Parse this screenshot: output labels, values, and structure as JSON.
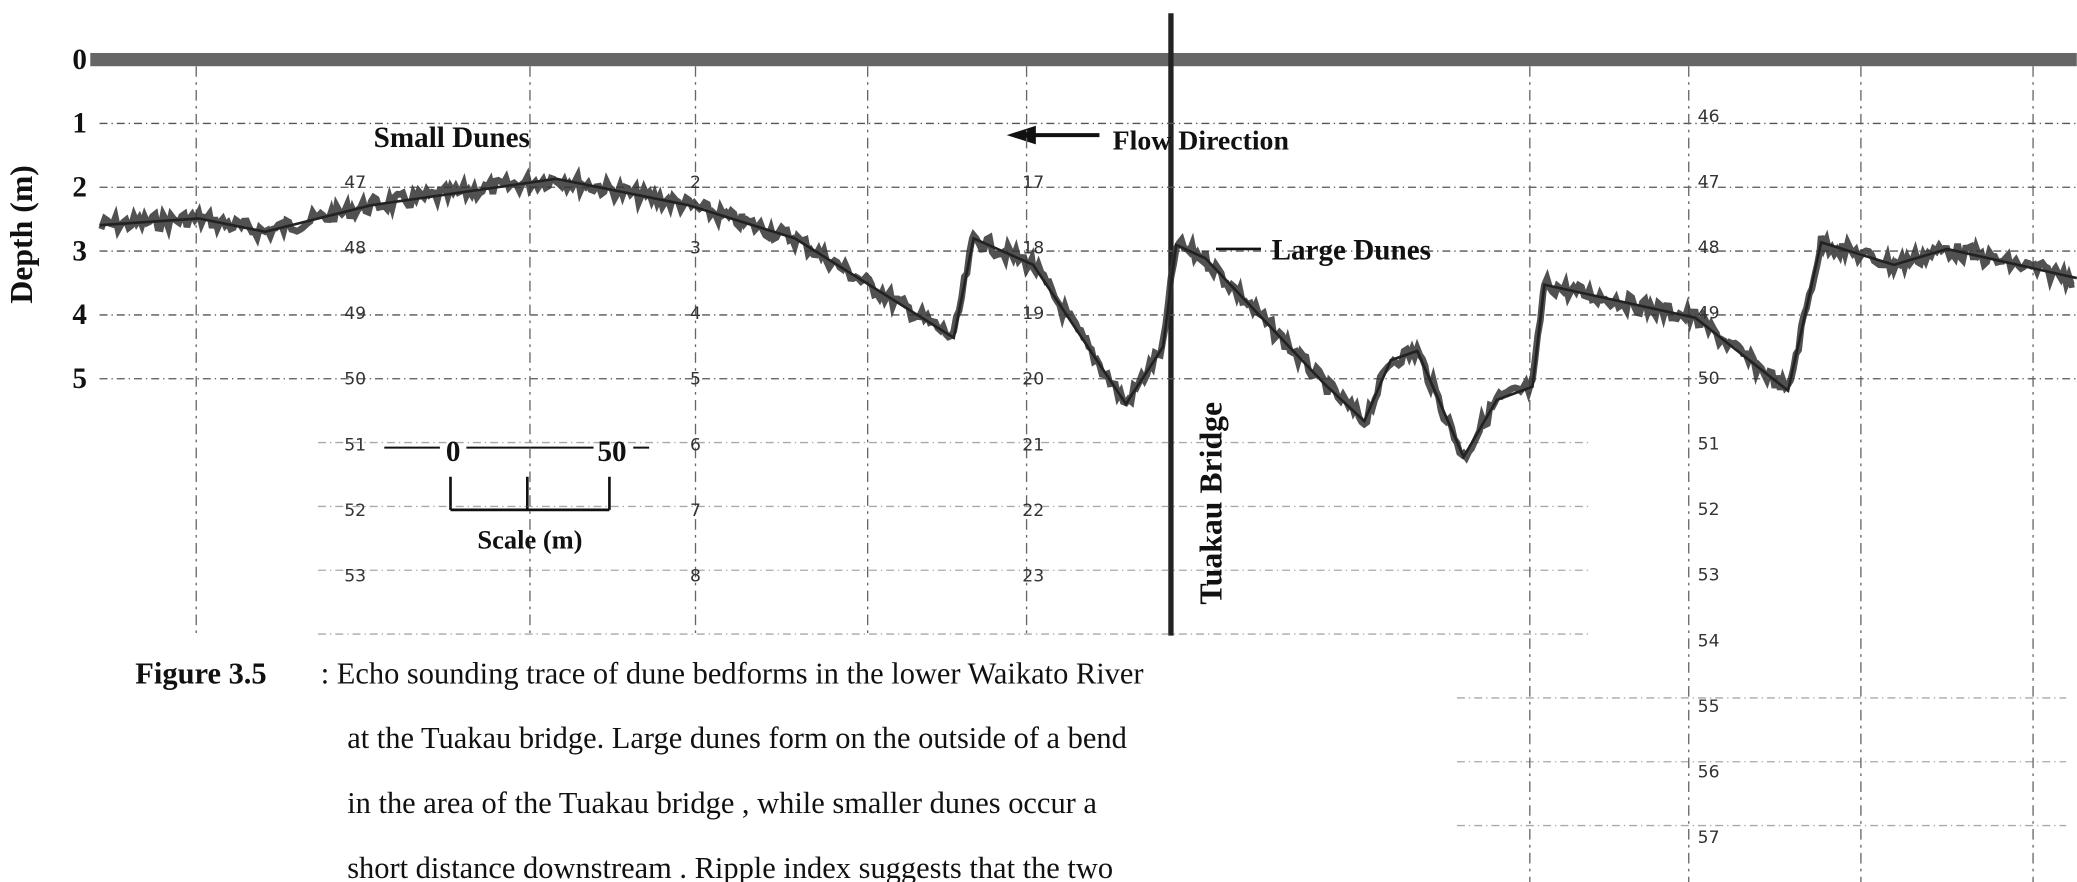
{
  "figure": {
    "axis_label": "Depth (m)",
    "depth_ticks": [
      0,
      1,
      2,
      3,
      4,
      5
    ],
    "annotations": {
      "small_dunes": "Small Dunes",
      "flow_direction": "Flow Direction",
      "large_dunes": "Large Dunes",
      "bridge": "Tuakau Bridge"
    },
    "scale": {
      "start": 0,
      "end": 50,
      "label": "Scale (m)"
    },
    "recorder_columns": [
      [
        47,
        48,
        49,
        50,
        51,
        52,
        53
      ],
      [
        2,
        3,
        4,
        5,
        6,
        7,
        8
      ],
      [
        17,
        18,
        19,
        20,
        21,
        22,
        23
      ],
      [
        46,
        47,
        48,
        49,
        50,
        51,
        52,
        53,
        54,
        55,
        56,
        57
      ]
    ]
  },
  "caption": {
    "label": "Figure 3.5",
    "lines": [
      ": Echo sounding trace of dune bedforms in the lower Waikato River",
      "at the Tuakau bridge. Large dunes form on the outside of a bend",
      "in the area of the Tuakau bridge , while smaller dunes occur a",
      "short distance downstream . Ripple index suggests that the two"
    ]
  }
}
